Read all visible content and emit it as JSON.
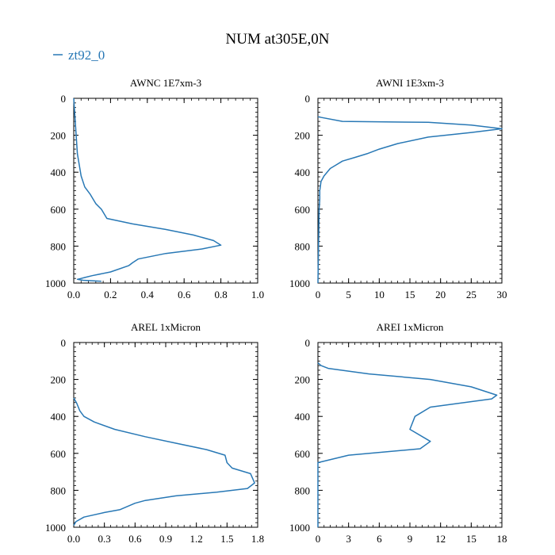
{
  "figure": {
    "title": "NUM at305E,0N",
    "legend": [
      {
        "label": "zt92_0",
        "color": "#2878b5"
      }
    ]
  },
  "chart_data": [
    {
      "type": "line",
      "title": "AWNC  1E7xm-3",
      "xlim": [
        0,
        1.0
      ],
      "ylim": [
        1000,
        0
      ],
      "xticks": [
        "0.0",
        "0.2",
        "0.4",
        "0.6",
        "0.8",
        "1.0"
      ],
      "xtick_values": [
        0,
        0.2,
        0.4,
        0.6,
        0.8,
        1.0
      ],
      "yticks": [
        "0",
        "200",
        "400",
        "600",
        "800",
        "1000"
      ],
      "ytick_values": [
        0,
        200,
        400,
        600,
        800,
        1000
      ],
      "series": [
        {
          "name": "zt92_0",
          "color": "#2878b5",
          "x": [
            0,
            0.01,
            0.02,
            0.04,
            0.06,
            0.09,
            0.12,
            0.15,
            0.18,
            0.32,
            0.5,
            0.65,
            0.76,
            0.8,
            0.7,
            0.5,
            0.35,
            0.32,
            0.3,
            0.2,
            0.1,
            0.06,
            0.04,
            0.02,
            0.05,
            0.15
          ],
          "y": [
            0,
            150,
            300,
            420,
            480,
            520,
            570,
            600,
            650,
            680,
            710,
            740,
            770,
            795,
            815,
            840,
            870,
            890,
            905,
            940,
            960,
            970,
            975,
            980,
            985,
            990
          ]
        }
      ]
    },
    {
      "type": "line",
      "title": "AWNI  1E3xm-3",
      "xlim": [
        0,
        30
      ],
      "ylim": [
        1000,
        0
      ],
      "xticks": [
        "0",
        "5",
        "10",
        "15",
        "20",
        "25",
        "30"
      ],
      "xtick_values": [
        0,
        5,
        10,
        15,
        20,
        25,
        30
      ],
      "yticks": [
        "0",
        "200",
        "400",
        "600",
        "800",
        "1000"
      ],
      "ytick_values": [
        0,
        200,
        400,
        600,
        800,
        1000
      ],
      "series": [
        {
          "name": "zt92_0",
          "color": "#2878b5",
          "x": [
            0,
            4,
            18,
            25,
            30,
            25,
            18,
            13,
            10,
            8,
            6,
            4,
            3,
            2,
            1,
            0.5,
            0.3,
            0.3,
            0.2,
            0
          ],
          "y": [
            100,
            125,
            130,
            145,
            165,
            185,
            210,
            245,
            275,
            300,
            320,
            340,
            360,
            380,
            420,
            450,
            500,
            550,
            600,
            1000
          ]
        }
      ]
    },
    {
      "type": "line",
      "title": "AREL  1xMicron",
      "xlim": [
        0,
        1.8
      ],
      "ylim": [
        1000,
        0
      ],
      "xticks": [
        "0.0",
        "0.3",
        "0.6",
        "0.9",
        "1.2",
        "1.5",
        "1.8"
      ],
      "xtick_values": [
        0,
        0.3,
        0.6,
        0.9,
        1.2,
        1.5,
        1.8
      ],
      "yticks": [
        "0",
        "200",
        "400",
        "600",
        "800",
        "1000"
      ],
      "ytick_values": [
        0,
        200,
        400,
        600,
        800,
        1000
      ],
      "series": [
        {
          "name": "zt92_0",
          "color": "#2878b5",
          "x": [
            0,
            0.03,
            0.06,
            0.1,
            0.2,
            0.4,
            0.7,
            1.0,
            1.3,
            1.48,
            1.5,
            1.55,
            1.73,
            1.77,
            1.7,
            1.4,
            1.0,
            0.7,
            0.6,
            0.45,
            0.3,
            0.1,
            0.02,
            0
          ],
          "y": [
            300,
            330,
            370,
            400,
            430,
            470,
            510,
            545,
            580,
            610,
            650,
            680,
            710,
            760,
            790,
            810,
            830,
            855,
            870,
            905,
            920,
            945,
            970,
            990
          ]
        }
      ]
    },
    {
      "type": "line",
      "title": "AREI  1xMicron",
      "xlim": [
        0,
        18
      ],
      "ylim": [
        1000,
        0
      ],
      "xticks": [
        "0",
        "3",
        "6",
        "9",
        "12",
        "15",
        "18"
      ],
      "xtick_values": [
        0,
        3,
        6,
        9,
        12,
        15,
        18
      ],
      "yticks": [
        "0",
        "200",
        "400",
        "600",
        "800",
        "1000"
      ],
      "ytick_values": [
        0,
        200,
        400,
        600,
        800,
        1000
      ],
      "series": [
        {
          "name": "zt92_0",
          "color": "#2878b5",
          "x": [
            0,
            0.3,
            1,
            5,
            11,
            15,
            17.5,
            17,
            11,
            9.5,
            9,
            11,
            10,
            3,
            0,
            0,
            0
          ],
          "y": [
            110,
            125,
            140,
            170,
            200,
            240,
            285,
            305,
            350,
            400,
            470,
            535,
            575,
            610,
            650,
            800,
            1000
          ]
        }
      ]
    }
  ]
}
